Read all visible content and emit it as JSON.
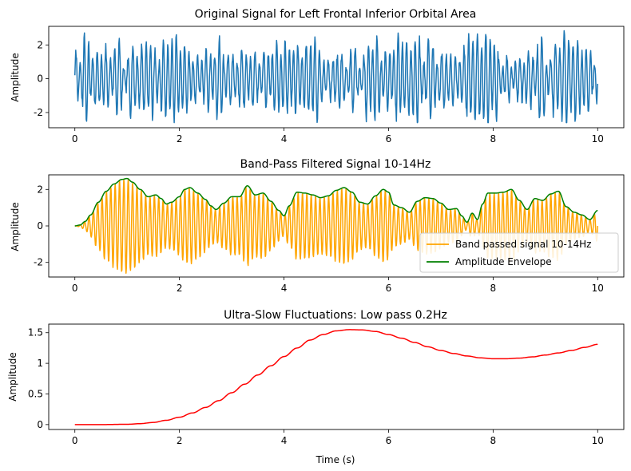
{
  "chart_data": [
    {
      "type": "line",
      "title": "Original Signal for Left Frontal Inferior Orbital Area",
      "xlabel": "",
      "ylabel": "Amplitude",
      "xlim": [
        -0.5,
        10.5
      ],
      "ylim": [
        -2.9,
        3.1
      ],
      "xticks": [
        0,
        2,
        4,
        6,
        8,
        10
      ],
      "yticks": [
        -2,
        0,
        2
      ],
      "legend": null,
      "series": [
        {
          "color": "#1f77b4",
          "signal": "oscillation",
          "x_range": [
            0,
            10
          ],
          "amplitude_range": [
            -2.6,
            2.9
          ],
          "approx_frequency_hz": 12
        }
      ]
    },
    {
      "type": "line",
      "title": "Band-Pass Filtered Signal 10-14Hz",
      "xlabel": "",
      "ylabel": "Amplitude",
      "xlim": [
        -0.5,
        10.5
      ],
      "ylim": [
        -2.8,
        2.8
      ],
      "xticks": [
        0,
        2,
        4,
        6,
        8,
        10
      ],
      "yticks": [
        -2,
        0,
        2
      ],
      "legend": "lower-right",
      "series": [
        {
          "name": "Band passed signal 10-14Hz",
          "color": "#ffa500",
          "signal": "carrier",
          "carrier_frequency_hz": 12,
          "envelope_ref": "Amplitude Envelope"
        },
        {
          "name": "Amplitude Envelope",
          "color": "#008000",
          "signal": "envelope",
          "x": [
            0,
            0.1,
            0.2,
            0.3,
            0.45,
            0.6,
            0.75,
            0.9,
            1.0,
            1.1,
            1.25,
            1.4,
            1.55,
            1.65,
            1.75,
            1.85,
            2.0,
            2.1,
            2.2,
            2.35,
            2.5,
            2.6,
            2.7,
            2.85,
            3.0,
            3.15,
            3.3,
            3.45,
            3.6,
            3.75,
            3.9,
            4.0,
            4.1,
            4.25,
            4.4,
            4.55,
            4.7,
            4.85,
            5.0,
            5.15,
            5.3,
            5.45,
            5.6,
            5.75,
            5.9,
            6.0,
            6.1,
            6.25,
            6.4,
            6.55,
            6.7,
            6.85,
            7.0,
            7.15,
            7.3,
            7.4,
            7.5,
            7.6,
            7.7,
            7.8,
            7.9,
            8.05,
            8.2,
            8.35,
            8.5,
            8.65,
            8.8,
            8.95,
            9.1,
            9.25,
            9.4,
            9.55,
            9.7,
            9.85,
            10.0
          ],
          "values": [
            0.0,
            0.05,
            0.25,
            0.6,
            1.3,
            1.9,
            2.3,
            2.55,
            2.6,
            2.4,
            2.0,
            1.6,
            1.7,
            1.5,
            1.2,
            1.3,
            1.6,
            2.0,
            2.1,
            1.8,
            1.45,
            1.1,
            0.9,
            1.25,
            1.6,
            1.6,
            2.2,
            1.7,
            1.8,
            1.35,
            0.85,
            0.55,
            1.1,
            1.85,
            1.8,
            1.7,
            1.55,
            1.65,
            1.95,
            2.1,
            1.85,
            1.3,
            1.2,
            1.65,
            2.0,
            1.85,
            1.15,
            1.0,
            0.75,
            1.35,
            1.55,
            1.5,
            1.25,
            0.9,
            0.95,
            0.55,
            0.2,
            0.7,
            0.35,
            1.2,
            1.8,
            1.8,
            1.85,
            2.0,
            1.4,
            0.9,
            1.5,
            1.4,
            1.75,
            1.9,
            1.05,
            0.75,
            0.6,
            0.35,
            0.85
          ]
        }
      ]
    },
    {
      "type": "line",
      "title": "Ultra-Slow Fluctuations: Low pass 0.2Hz",
      "xlabel": "Time (s)",
      "ylabel": "Amplitude",
      "xlim": [
        -0.5,
        10.5
      ],
      "ylim": [
        -0.08,
        1.64
      ],
      "xticks": [
        0,
        2,
        4,
        6,
        8,
        10
      ],
      "yticks": [
        0.0,
        0.5,
        1.0,
        1.5
      ],
      "legend": null,
      "series": [
        {
          "color": "#ff0000",
          "x": [
            0,
            0.5,
            1.0,
            1.25,
            1.5,
            1.75,
            2.0,
            2.25,
            2.5,
            2.75,
            3.0,
            3.25,
            3.5,
            3.75,
            4.0,
            4.25,
            4.5,
            4.75,
            5.0,
            5.25,
            5.5,
            5.75,
            6.0,
            6.25,
            6.5,
            6.75,
            7.0,
            7.25,
            7.5,
            7.75,
            8.0,
            8.25,
            8.5,
            8.75,
            9.0,
            9.25,
            9.5,
            9.75,
            10.0
          ],
          "values": [
            0.0,
            0.0,
            0.005,
            0.015,
            0.035,
            0.07,
            0.12,
            0.19,
            0.28,
            0.39,
            0.52,
            0.66,
            0.81,
            0.96,
            1.11,
            1.25,
            1.38,
            1.47,
            1.53,
            1.55,
            1.545,
            1.52,
            1.47,
            1.41,
            1.34,
            1.27,
            1.21,
            1.16,
            1.12,
            1.09,
            1.075,
            1.075,
            1.085,
            1.105,
            1.135,
            1.17,
            1.21,
            1.26,
            1.31
          ]
        }
      ]
    }
  ]
}
